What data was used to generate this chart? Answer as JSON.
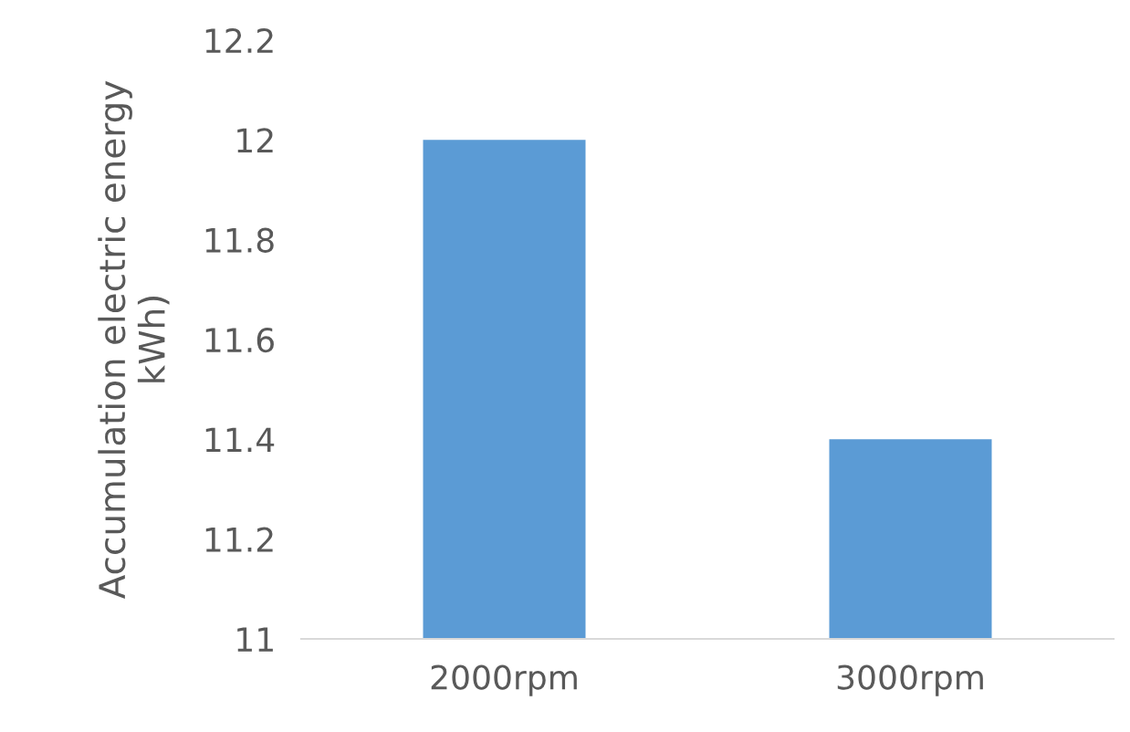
{
  "chart_data": {
    "type": "bar",
    "ylabel": "Accumulation electric energy\nkWh)",
    "categories": [
      "2000rpm",
      "3000rpm"
    ],
    "values": [
      12,
      11.4
    ],
    "color": "#5b9bd5",
    "ylim": [
      11,
      12.2
    ],
    "yticks": [
      11,
      11.2,
      11.4,
      11.6,
      11.8,
      12,
      12.2
    ],
    "grid": false
  }
}
